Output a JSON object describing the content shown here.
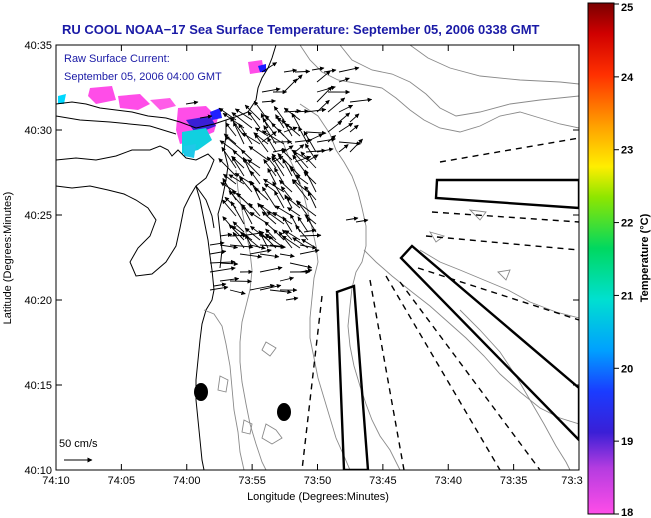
{
  "title": "RU COOL  NOAA−17  Sea Surface Temperature:  September 05, 2006 0338 GMT",
  "legend": {
    "line1": "Raw Surface Current:",
    "line2": "September 05, 2006 04:00 GMT"
  },
  "scale_label": "50 cm/s",
  "x_axis": {
    "label": "Longitude (Degrees:Minutes)",
    "ticks": [
      "74:10",
      "74:05",
      "74:00",
      "73:55",
      "73:50",
      "73:45",
      "73:40",
      "73:35",
      "73:3"
    ]
  },
  "y_axis": {
    "label": "Latitude (Degrees:Minutes)",
    "ticks": [
      "40:35",
      "40:30",
      "40:25",
      "40:20",
      "40:15",
      "40:10"
    ]
  },
  "colorbar": {
    "label": "Temperature (°C)",
    "ticks": [
      "25",
      "24",
      "23",
      "22",
      "21",
      "20",
      "19",
      "18"
    ],
    "min": 18,
    "max": 25,
    "colors": [
      "#ff4de8",
      "#7a1fd6",
      "#1a1aff",
      "#00b4ff",
      "#00e0c8",
      "#00d25a",
      "#a0e600",
      "#ffe600",
      "#ff9a00",
      "#ff2a00",
      "#c80000",
      "#7a0000"
    ]
  }
}
